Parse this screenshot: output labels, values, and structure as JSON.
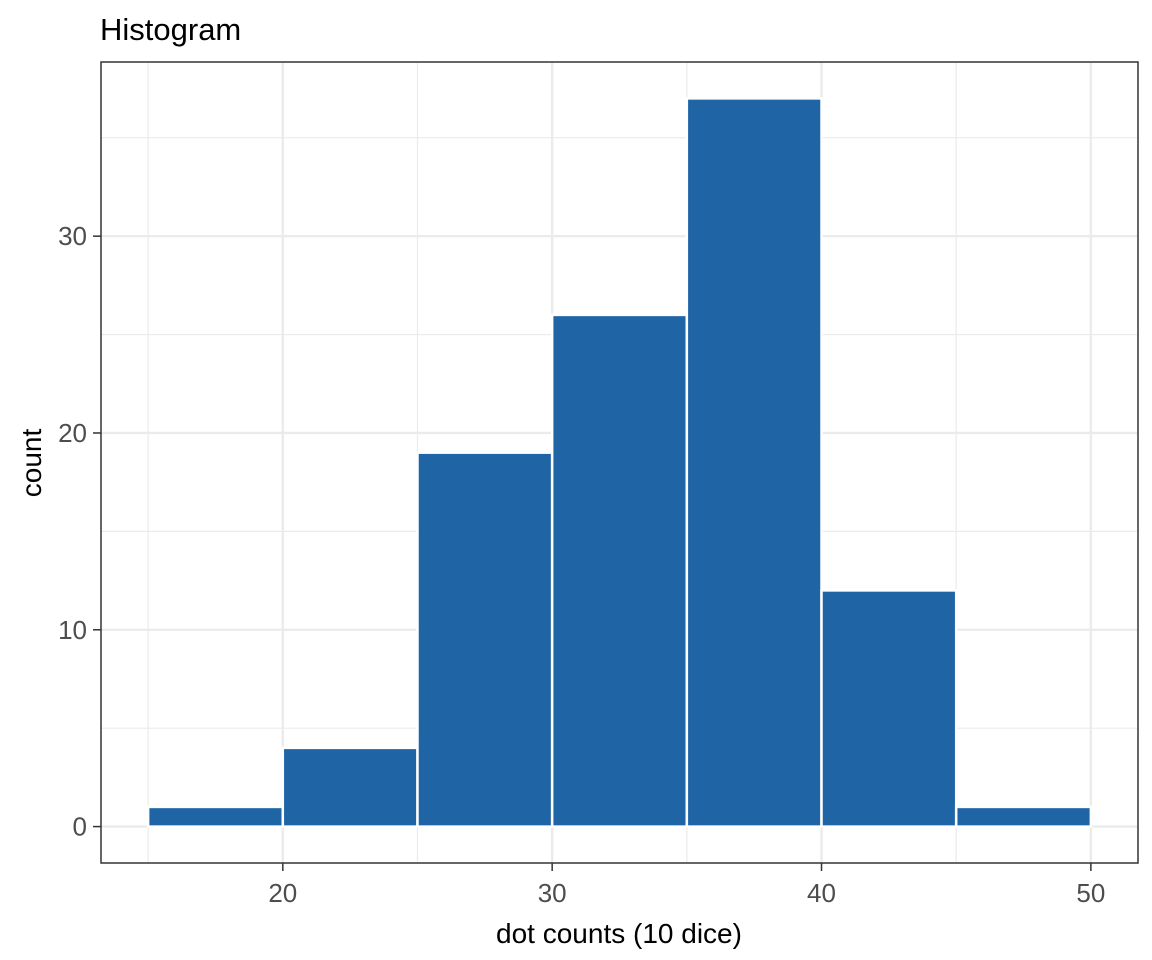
{
  "chart_data": {
    "type": "histogram",
    "title": "Histogram",
    "xlabel": "dot counts (10 dice)",
    "ylabel": "count",
    "bin_width": 5,
    "bins": [
      {
        "start": 15,
        "end": 20,
        "count": 1
      },
      {
        "start": 20,
        "end": 25,
        "count": 4
      },
      {
        "start": 25,
        "end": 30,
        "count": 19
      },
      {
        "start": 30,
        "end": 35,
        "count": 26
      },
      {
        "start": 35,
        "end": 40,
        "count": 37
      },
      {
        "start": 40,
        "end": 45,
        "count": 12
      },
      {
        "start": 45,
        "end": 50,
        "count": 1
      }
    ],
    "xlim": [
      13.25,
      51.75
    ],
    "ylim": [
      -1.85,
      38.85
    ],
    "x_ticks": [
      20,
      30,
      40,
      50
    ],
    "x_tick_labels": [
      "20",
      "30",
      "40",
      "50"
    ],
    "x_minor_ticks": [
      15,
      25,
      35,
      45
    ],
    "y_ticks": [
      0,
      10,
      20,
      30
    ],
    "y_tick_labels": [
      "0",
      "10",
      "20",
      "30"
    ],
    "y_minor_ticks": [
      5,
      15,
      25,
      35
    ],
    "grid": true,
    "legend": "none",
    "colors": {
      "bar_fill": "#1f65a6",
      "bar_outline": "#ffffff",
      "grid": "#ebebeb",
      "panel_border": "#333333",
      "tick_text": "#4d4d4d",
      "title_text": "#000000",
      "background": "#ffffff"
    }
  }
}
